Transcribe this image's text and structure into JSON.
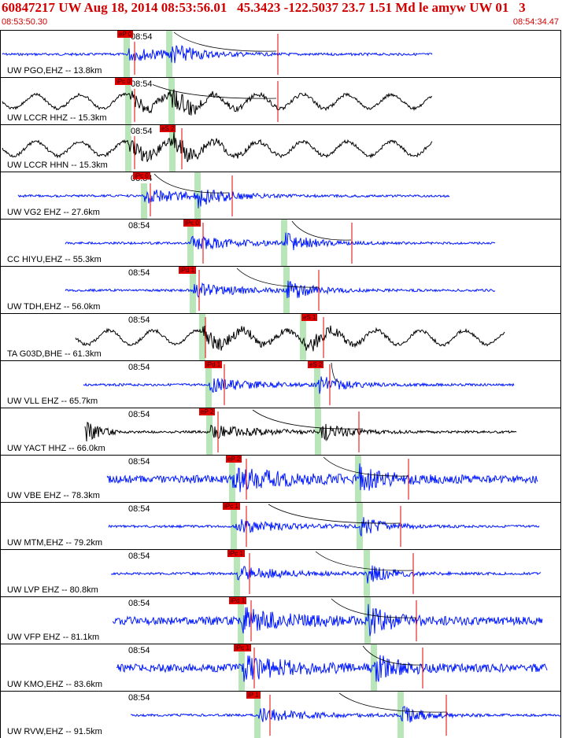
{
  "header": {
    "title": "60847217 UW Aug 18, 2014 08:53:56.01   45.3423 -122.5037 23.7 1.51 Md le amyw UW 01   3",
    "start_time": "08:53:50.30",
    "end_time": "08:54:34.47"
  },
  "colors": {
    "blue": "#0018ff",
    "black": "#000000",
    "pick": "#e00000",
    "band": "#b8e6b8"
  },
  "traces": [
    {
      "station": "UW PGO,EHZ -- 13.8km",
      "time": "08:54",
      "color": "blue",
      "tags": [
        "eP 0"
      ],
      "amp": "low"
    },
    {
      "station": "UW LCCR HHZ -- 15.3km",
      "time": "08:54",
      "color": "black",
      "tags": [
        "iPc 0"
      ],
      "amp": "wavy"
    },
    {
      "station": "UW LCCR HHN -- 15.3km",
      "time": "08:54",
      "color": "black",
      "tags": [
        "eS 2"
      ],
      "amp": "wavy"
    },
    {
      "station": "UW VG2 EHZ -- 27.6km",
      "time": "08:54",
      "color": "blue",
      "tags": [
        "iPc 0"
      ],
      "amp": "low"
    },
    {
      "station": "CC HIYU,EHZ -- 55.3km",
      "time": "08:54",
      "color": "blue",
      "tags": [
        "iPc 0"
      ],
      "amp": "low"
    },
    {
      "station": "UW TDH,EHZ -- 56.0km",
      "time": "08:54",
      "color": "blue",
      "tags": [
        "iPd 1"
      ],
      "amp": "mid"
    },
    {
      "station": "TA G03D,BHE -- 61.3km",
      "time": "08:54",
      "color": "black",
      "tags": [
        "eS 1"
      ],
      "amp": "wavy"
    },
    {
      "station": "UW VLL EHZ -- 65.7km",
      "time": "08:54",
      "color": "blue",
      "tags": [
        "iPd 1",
        "eS 2"
      ],
      "amp": "low"
    },
    {
      "station": "UW YACT HHZ -- 66.0km",
      "time": "08:54",
      "color": "black",
      "tags": [
        "eP 2"
      ],
      "amp": "flat"
    },
    {
      "station": "UW VBE EHZ -- 78.3km",
      "time": "08:54",
      "color": "blue",
      "tags": [
        "eP 2"
      ],
      "amp": "high"
    },
    {
      "station": "UW MTM,EHZ -- 79.2km",
      "time": "08:54",
      "color": "blue",
      "tags": [
        "iPc 1"
      ],
      "amp": "low"
    },
    {
      "station": "UW LVP EHZ -- 80.8km",
      "time": "08:54",
      "color": "blue",
      "tags": [
        "iPc 1"
      ],
      "amp": "mid"
    },
    {
      "station": "UW VFP EHZ -- 81.1km",
      "time": "08:54",
      "color": "blue",
      "tags": [
        "iPd 1"
      ],
      "amp": "high"
    },
    {
      "station": "UW KMO,EHZ -- 83.6km",
      "time": "08:54",
      "color": "blue",
      "tags": [
        "iPc 1"
      ],
      "amp": "high"
    },
    {
      "station": "UW RVW,EHZ -- 91.5km",
      "time": "08:54",
      "color": "blue",
      "tags": [
        "iP 1"
      ],
      "amp": "mid"
    }
  ]
}
